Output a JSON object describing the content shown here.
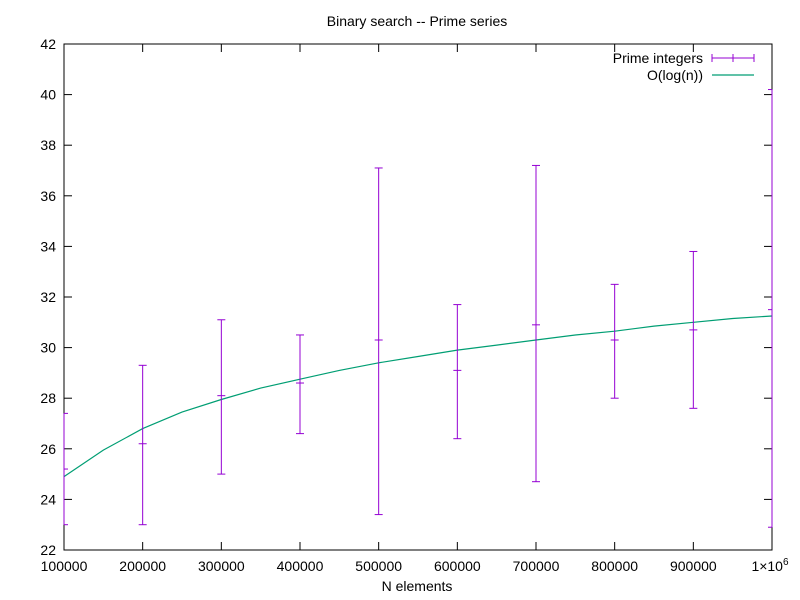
{
  "chart_data": {
    "type": "line",
    "title": "Binary search -- Prime series",
    "xlabel": "N elements",
    "ylabel": "",
    "xlim": [
      100000,
      1000000
    ],
    "ylim": [
      22,
      42
    ],
    "x_ticks": [
      100000,
      200000,
      300000,
      400000,
      500000,
      600000,
      700000,
      800000,
      900000,
      1000000
    ],
    "x_tick_labels": [
      "100000",
      "200000",
      "300000",
      "400000",
      "500000",
      "600000",
      "700000",
      "800000",
      "900000",
      "1×10"
    ],
    "x_tick_last_superscript": "6",
    "y_ticks": [
      22,
      24,
      26,
      28,
      30,
      32,
      34,
      36,
      38,
      40,
      42
    ],
    "y_tick_labels": [
      "22",
      "24",
      "26",
      "28",
      "30",
      "32",
      "34",
      "36",
      "38",
      "40",
      "42"
    ],
    "grid": false,
    "legend_position": "top-right",
    "series": [
      {
        "name": "Prime integers",
        "kind": "errorbar",
        "color": "#9400d3",
        "points": [
          {
            "x": 100000,
            "y": 25.2,
            "ylow": 23.0,
            "yhigh": 27.4
          },
          {
            "x": 200000,
            "y": 26.2,
            "ylow": 23.0,
            "yhigh": 29.3
          },
          {
            "x": 300000,
            "y": 28.1,
            "ylow": 25.0,
            "yhigh": 31.1
          },
          {
            "x": 400000,
            "y": 28.6,
            "ylow": 26.6,
            "yhigh": 30.5
          },
          {
            "x": 500000,
            "y": 30.3,
            "ylow": 23.4,
            "yhigh": 37.1
          },
          {
            "x": 600000,
            "y": 29.1,
            "ylow": 26.4,
            "yhigh": 31.7
          },
          {
            "x": 700000,
            "y": 30.9,
            "ylow": 24.7,
            "yhigh": 37.2
          },
          {
            "x": 800000,
            "y": 30.3,
            "ylow": 28.0,
            "yhigh": 32.5
          },
          {
            "x": 900000,
            "y": 30.7,
            "ylow": 27.6,
            "yhigh": 33.8
          },
          {
            "x": 1000000,
            "y": 31.5,
            "ylow": 22.9,
            "yhigh": 40.2
          }
        ]
      },
      {
        "name": "O(log(n))",
        "kind": "line",
        "color": "#009e73",
        "x": [
          100000,
          150000,
          200000,
          250000,
          300000,
          350000,
          400000,
          450000,
          500000,
          550000,
          600000,
          650000,
          700000,
          750000,
          800000,
          850000,
          900000,
          950000,
          1000000
        ],
        "values": [
          24.9,
          25.95,
          26.8,
          27.45,
          27.95,
          28.4,
          28.75,
          29.1,
          29.4,
          29.65,
          29.9,
          30.1,
          30.3,
          30.5,
          30.65,
          30.85,
          31.0,
          31.15,
          31.25
        ]
      }
    ]
  }
}
